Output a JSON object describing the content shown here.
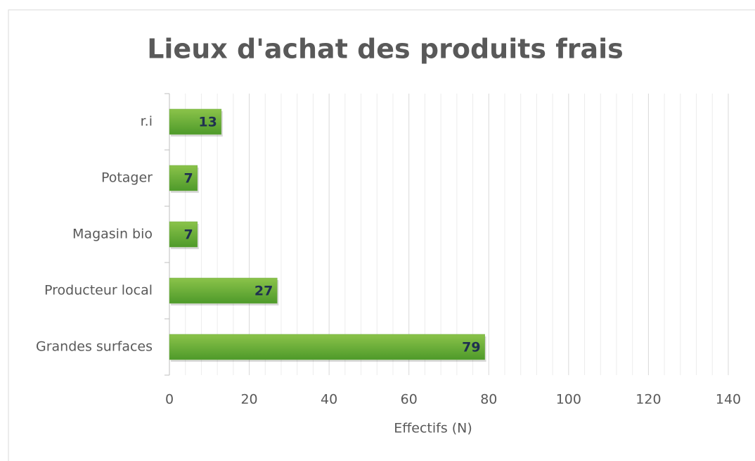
{
  "chart_data": {
    "type": "hbar",
    "title": "Lieux d'achat des produits frais",
    "x_label": "Effectifs (N)",
    "categories": [
      "Grandes surfaces",
      "Producteur local",
      "Magasin bio",
      "Potager",
      "r.i"
    ],
    "values": [
      79,
      27,
      7,
      7,
      13
    ],
    "color": "#70ad47",
    "xlim": [
      0,
      140
    ],
    "xticks": [
      0,
      20,
      40,
      60,
      80,
      100,
      120,
      140
    ],
    "grid": true,
    "minor_grid": true
  }
}
